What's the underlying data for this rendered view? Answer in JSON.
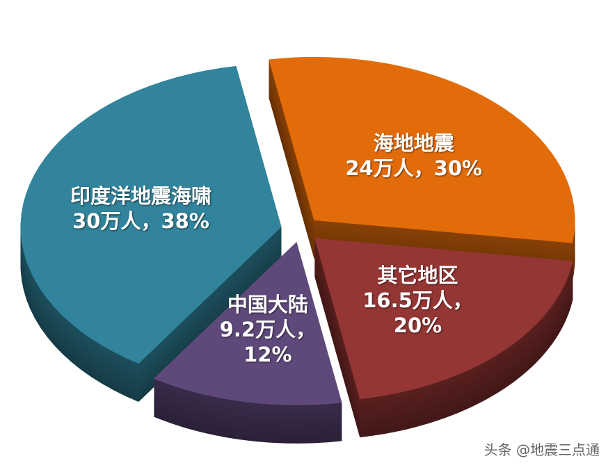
{
  "chart_data": {
    "type": "pie",
    "categories": [
      "海地地震",
      "其它地区",
      "中国大陆",
      "印度洋地震海啸"
    ],
    "values": [
      30,
      20,
      12,
      38
    ],
    "value_labels": [
      "24万人，30%",
      "16.5万人，20%",
      "9.2万人，12%",
      "30万人，38%"
    ],
    "colors": [
      "#e36c0a",
      "#943634",
      "#5f497a",
      "#31849b"
    ],
    "watermark": "头条 @地震三点通"
  }
}
